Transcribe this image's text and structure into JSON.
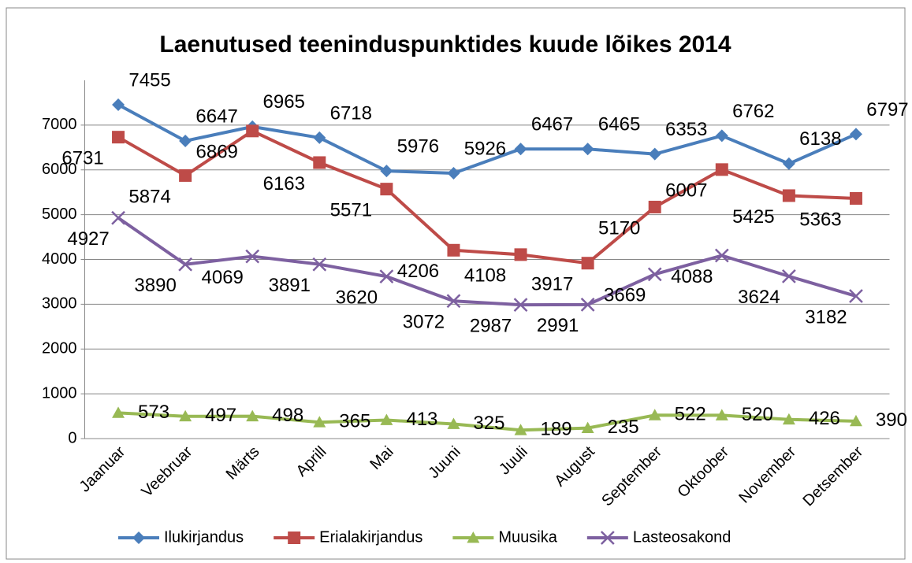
{
  "chart_data": {
    "type": "line",
    "title": "Laenutused teeninduspunktides kuude lõikes 2014",
    "categories": [
      "Jaanuar",
      "Veebruar",
      "Märts",
      "Aprill",
      "Mai",
      "Juuni",
      "Juuli",
      "August",
      "September",
      "Oktoober",
      "November",
      "Detsember"
    ],
    "series": [
      {
        "name": "Ilukirjandus",
        "color": "#4a7ebb",
        "marker": "diamond",
        "values": [
          7455,
          6647,
          6965,
          6718,
          5976,
          5926,
          6467,
          6465,
          6353,
          6762,
          6138,
          6797
        ]
      },
      {
        "name": "Erialakirjandus",
        "color": "#be4b48",
        "marker": "square",
        "values": [
          6731,
          5874,
          6869,
          6163,
          5571,
          4206,
          4108,
          3917,
          5170,
          6007,
          5425,
          5363
        ]
      },
      {
        "name": "Muusika",
        "color": "#98b954",
        "marker": "triangle",
        "values": [
          573,
          497,
          498,
          365,
          413,
          325,
          189,
          235,
          522,
          520,
          426,
          390
        ]
      },
      {
        "name": "Lasteosakond",
        "color": "#7d60a0",
        "marker": "x",
        "values": [
          4927,
          3890,
          4069,
          3891,
          3620,
          3072,
          2987,
          2991,
          3669,
          4088,
          3624,
          3182
        ]
      }
    ],
    "ylim": [
      0,
      8000
    ],
    "yticks": [
      0,
      1000,
      2000,
      3000,
      4000,
      5000,
      6000,
      7000
    ],
    "grid": true,
    "legend": "bottom"
  }
}
